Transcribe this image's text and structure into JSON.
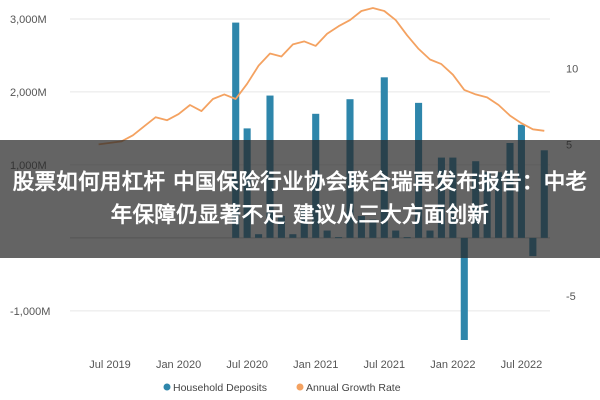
{
  "overlay": {
    "headline": "股票如何用杠杆 中国保险行业协会联合瑞再发布报告：中老年保障仍显著不足 建议从三大方面创新"
  },
  "chart_data": {
    "type": "bar",
    "title": "",
    "left_axis": {
      "ticks": [
        -1000,
        0,
        1000,
        2000,
        3000
      ],
      "tick_labels": [
        "-1,000M",
        "",
        "1,000M",
        "2,000M",
        "3,000M"
      ],
      "ylim": [
        -1400,
        3150
      ]
    },
    "right_axis": {
      "ticks": [
        -5,
        0,
        5,
        10
      ],
      "tick_labels": [
        "-5",
        "",
        "5",
        "10"
      ],
      "ylim": [
        -7.9,
        14
      ]
    },
    "x_ticks": [
      "Jul 2019",
      "Jan 2020",
      "Jul 2020",
      "Jan 2021",
      "Jul 2021",
      "Jan 2022",
      "Jul 2022"
    ],
    "x_tick_index": [
      3,
      9,
      15,
      21,
      27,
      33,
      39
    ],
    "series": [
      {
        "name": "Household Deposits",
        "type": "bar",
        "axis": "left",
        "color": "#2e86ab",
        "values": [
          null,
          null,
          null,
          null,
          null,
          null,
          null,
          null,
          null,
          null,
          null,
          null,
          null,
          null,
          2950,
          1500,
          50,
          1950,
          300,
          50,
          400,
          1700,
          100,
          10,
          1900,
          300,
          250,
          2200,
          100,
          10,
          1850,
          100,
          1100,
          1100,
          -1400,
          1050,
          900,
          900,
          1300,
          1550,
          -250,
          1200
        ]
      },
      {
        "name": "Annual Growth Rate",
        "type": "line",
        "axis": "right",
        "color": "#f4a261",
        "values": [
          null,
          null,
          5.0,
          5.1,
          5.2,
          5.6,
          6.2,
          6.8,
          6.6,
          7.0,
          7.6,
          7.2,
          8.0,
          8.3,
          8.0,
          9.0,
          10.2,
          11.0,
          10.8,
          11.6,
          11.8,
          11.5,
          12.3,
          12.8,
          13.2,
          13.8,
          14.0,
          13.8,
          13.2,
          12.2,
          11.3,
          10.6,
          10.3,
          9.6,
          8.6,
          8.3,
          8.1,
          7.6,
          6.9,
          6.4,
          6.0,
          5.9
        ]
      }
    ],
    "legend": {
      "placement": "bottom",
      "entries": [
        "Household Deposits",
        "Annual Growth Rate"
      ]
    },
    "grid": true
  }
}
